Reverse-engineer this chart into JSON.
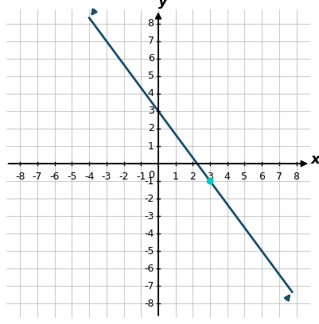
{
  "xlim": [
    -8.8,
    8.8
  ],
  "ylim": [
    -8.8,
    8.8
  ],
  "xticks": [
    -8,
    -7,
    -6,
    -5,
    -4,
    -3,
    -2,
    -1,
    1,
    2,
    3,
    4,
    5,
    6,
    7,
    8
  ],
  "yticks": [
    -8,
    -7,
    -6,
    -5,
    -4,
    -3,
    -2,
    -1,
    1,
    2,
    3,
    4,
    5,
    6,
    7,
    8
  ],
  "line_color": "#1a4f6e",
  "line_width": 2.0,
  "x_start": -4.0,
  "x_end": 7.75,
  "slope": -1.3333333,
  "intercept": 3.0,
  "highlight_point_x": 3,
  "highlight_point_y": -1,
  "highlight_color": "#00c8c8",
  "highlight_size": 40,
  "xlabel": "x",
  "ylabel": "y",
  "axis_color": "#000000",
  "grid_color": "#b0b0b0",
  "tick_fontsize": 9,
  "label_fontsize": 13
}
